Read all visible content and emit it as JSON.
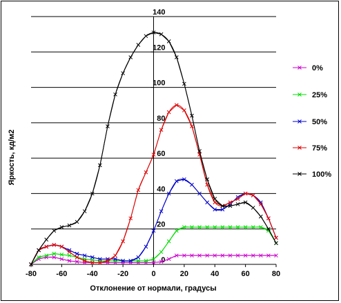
{
  "chart_data": {
    "type": "line",
    "title": "",
    "xlabel": "Отклонение от нормали, градусы",
    "ylabel": "Яркость, кд/м2",
    "xlim": [
      -80,
      80
    ],
    "ylim": [
      0,
      140
    ],
    "xticks": [
      -80,
      -60,
      -40,
      -20,
      0,
      20,
      40,
      60,
      80
    ],
    "yticks": [
      0,
      20,
      40,
      60,
      80,
      100,
      120,
      140
    ],
    "grid": "horizontal",
    "legend_position": "right",
    "series": [
      {
        "name": "0%",
        "color": "#cc00cc",
        "points": [
          [
            -80,
            0
          ],
          [
            -75,
            3
          ],
          [
            -70,
            4
          ],
          [
            -65,
            4
          ],
          [
            -60,
            3
          ],
          [
            -55,
            2
          ],
          [
            -50,
            1.5
          ],
          [
            -45,
            1
          ],
          [
            -40,
            1
          ],
          [
            -35,
            1
          ],
          [
            -30,
            1
          ],
          [
            -25,
            1
          ],
          [
            -20,
            1
          ],
          [
            -15,
            1
          ],
          [
            -10,
            1
          ],
          [
            -5,
            1
          ],
          [
            0,
            1
          ],
          [
            5,
            1.5
          ],
          [
            10,
            3
          ],
          [
            15,
            5
          ],
          [
            20,
            5
          ],
          [
            25,
            5
          ],
          [
            30,
            5
          ],
          [
            35,
            5
          ],
          [
            40,
            5
          ],
          [
            45,
            5
          ],
          [
            50,
            5
          ],
          [
            55,
            5
          ],
          [
            60,
            5
          ],
          [
            65,
            5
          ],
          [
            70,
            5
          ],
          [
            75,
            5
          ],
          [
            80,
            5
          ]
        ]
      },
      {
        "name": "25%",
        "color": "#00dd00",
        "points": [
          [
            -80,
            0
          ],
          [
            -75,
            4
          ],
          [
            -70,
            5
          ],
          [
            -65,
            6
          ],
          [
            -60,
            5.5
          ],
          [
            -55,
            5
          ],
          [
            -50,
            4
          ],
          [
            -45,
            3
          ],
          [
            -40,
            2.5
          ],
          [
            -35,
            2
          ],
          [
            -30,
            2
          ],
          [
            -25,
            2
          ],
          [
            -20,
            2
          ],
          [
            -15,
            2
          ],
          [
            -10,
            2
          ],
          [
            -5,
            2
          ],
          [
            0,
            3
          ],
          [
            5,
            7
          ],
          [
            10,
            13
          ],
          [
            15,
            19
          ],
          [
            20,
            21
          ],
          [
            25,
            21
          ],
          [
            30,
            21
          ],
          [
            35,
            21
          ],
          [
            40,
            21
          ],
          [
            45,
            21
          ],
          [
            50,
            21
          ],
          [
            55,
            21
          ],
          [
            60,
            21
          ],
          [
            65,
            21
          ],
          [
            70,
            21
          ],
          [
            75,
            19
          ],
          [
            80,
            12
          ]
        ]
      },
      {
        "name": "50%",
        "color": "#0000cc",
        "points": [
          [
            -80,
            0
          ],
          [
            -75,
            8
          ],
          [
            -70,
            10
          ],
          [
            -65,
            11
          ],
          [
            -60,
            10
          ],
          [
            -55,
            8
          ],
          [
            -50,
            6
          ],
          [
            -45,
            5
          ],
          [
            -40,
            4
          ],
          [
            -35,
            3
          ],
          [
            -30,
            3
          ],
          [
            -25,
            3
          ],
          [
            -20,
            2
          ],
          [
            -15,
            2
          ],
          [
            -10,
            4
          ],
          [
            -5,
            10
          ],
          [
            0,
            19
          ],
          [
            5,
            30
          ],
          [
            10,
            40
          ],
          [
            15,
            47
          ],
          [
            20,
            48
          ],
          [
            25,
            45
          ],
          [
            30,
            40
          ],
          [
            35,
            35
          ],
          [
            40,
            31
          ],
          [
            45,
            31
          ],
          [
            50,
            34
          ],
          [
            55,
            38
          ],
          [
            60,
            40
          ],
          [
            65,
            39
          ],
          [
            70,
            35
          ],
          [
            75,
            26
          ],
          [
            80,
            15
          ]
        ]
      },
      {
        "name": "75%",
        "color": "#dd0000",
        "points": [
          [
            -80,
            0
          ],
          [
            -75,
            8
          ],
          [
            -70,
            10
          ],
          [
            -65,
            11
          ],
          [
            -60,
            10
          ],
          [
            -55,
            7
          ],
          [
            -50,
            4
          ],
          [
            -45,
            2
          ],
          [
            -40,
            1
          ],
          [
            -35,
            1
          ],
          [
            -30,
            2
          ],
          [
            -25,
            5
          ],
          [
            -20,
            13
          ],
          [
            -15,
            26
          ],
          [
            -10,
            42
          ],
          [
            -5,
            52
          ],
          [
            0,
            62
          ],
          [
            5,
            76
          ],
          [
            10,
            86
          ],
          [
            15,
            90
          ],
          [
            20,
            87
          ],
          [
            25,
            78
          ],
          [
            30,
            62
          ],
          [
            35,
            45
          ],
          [
            40,
            35
          ],
          [
            45,
            33
          ],
          [
            50,
            35
          ],
          [
            55,
            37
          ],
          [
            60,
            40
          ],
          [
            65,
            39
          ],
          [
            70,
            34
          ],
          [
            75,
            26
          ],
          [
            80,
            15
          ]
        ]
      },
      {
        "name": "100%",
        "color": "#000000",
        "points": [
          [
            -80,
            0
          ],
          [
            -75,
            8
          ],
          [
            -70,
            14
          ],
          [
            -65,
            19
          ],
          [
            -60,
            21
          ],
          [
            -55,
            22
          ],
          [
            -50,
            24
          ],
          [
            -45,
            30
          ],
          [
            -40,
            40
          ],
          [
            -35,
            56
          ],
          [
            -30,
            78
          ],
          [
            -25,
            96
          ],
          [
            -20,
            108
          ],
          [
            -15,
            117
          ],
          [
            -10,
            124
          ],
          [
            -5,
            129
          ],
          [
            0,
            131
          ],
          [
            5,
            130
          ],
          [
            10,
            126
          ],
          [
            15,
            117
          ],
          [
            20,
            102
          ],
          [
            25,
            84
          ],
          [
            30,
            64
          ],
          [
            35,
            48
          ],
          [
            40,
            37
          ],
          [
            45,
            33
          ],
          [
            50,
            33
          ],
          [
            55,
            34
          ],
          [
            60,
            35
          ],
          [
            65,
            32
          ],
          [
            70,
            27
          ],
          [
            75,
            20
          ],
          [
            80,
            12
          ]
        ]
      }
    ]
  }
}
